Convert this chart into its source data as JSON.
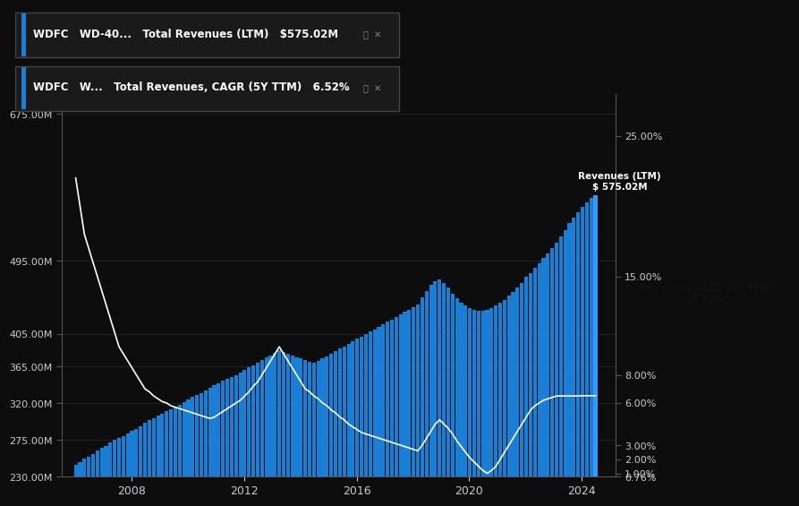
{
  "background_color": "#0d0d0d",
  "bar_color": "#1a7fd4",
  "bar_color_last": "#3399ff",
  "line_color": "#ffffff",
  "axis_text_color": "#cccccc",
  "left_yticks_labels": [
    "230.00M",
    "275.00M",
    "320.00M",
    "365.00M",
    "405.00M",
    "495.00M",
    "675.00M"
  ],
  "left_yticks_values": [
    230,
    275,
    320,
    365,
    405,
    495,
    675
  ],
  "right_yticks_labels": [
    "0.76%",
    "1.00%",
    "2.00%",
    "3.00%",
    "6.00%",
    "8.00%",
    "15.00%",
    "25.00%"
  ],
  "right_yticks_values": [
    0.76,
    1.0,
    2.0,
    3.0,
    6.0,
    8.0,
    15.0,
    25.0
  ],
  "xlabel_ticks": [
    2008,
    2012,
    2016,
    2020,
    2024
  ],
  "legend1_text": [
    "WDFC",
    "WD-40...",
    "Total Revenues (LTM)",
    "$575.02M"
  ],
  "legend2_text": [
    "WDFC",
    "W...",
    "Total Revenues, CAGR (5Y TTM)",
    "6.52%"
  ],
  "annotation_bar": "Revenues (LTM)\n$ 575.02M",
  "annotation_cagr": "Revenues CAGR (5Y TTM)\n6.52%",
  "revenues_data": [
    245,
    248,
    252,
    255,
    258,
    262,
    265,
    268,
    272,
    275,
    278,
    280,
    283,
    286,
    289,
    292,
    296,
    299,
    302,
    305,
    307,
    310,
    313,
    316,
    318,
    322,
    325,
    328,
    330,
    333,
    336,
    339,
    342,
    345,
    348,
    350,
    352,
    355,
    358,
    361,
    364,
    367,
    370,
    373,
    376,
    379,
    382,
    385,
    383,
    381,
    379,
    377,
    375,
    373,
    371,
    370,
    372,
    375,
    378,
    381,
    384,
    387,
    390,
    393,
    396,
    399,
    402,
    405,
    408,
    411,
    414,
    417,
    420,
    423,
    426,
    429,
    432,
    435,
    438,
    441,
    450,
    458,
    465,
    470,
    472,
    468,
    462,
    455,
    449,
    444,
    440,
    437,
    435,
    434,
    434,
    435,
    437,
    440,
    443,
    447,
    452,
    457,
    462,
    468,
    475,
    480,
    486,
    492,
    498,
    504,
    510,
    517,
    525,
    533,
    541,
    548,
    555,
    561,
    567,
    572,
    575
  ],
  "cagr_data": [
    22,
    20,
    18,
    17,
    16,
    15,
    14,
    13,
    12,
    11,
    10,
    9.5,
    9,
    8.5,
    8,
    7.5,
    7,
    6.8,
    6.5,
    6.3,
    6.1,
    6.0,
    5.8,
    5.7,
    5.6,
    5.5,
    5.4,
    5.3,
    5.2,
    5.1,
    5.0,
    4.9,
    5.0,
    5.2,
    5.4,
    5.6,
    5.8,
    6.0,
    6.2,
    6.5,
    6.8,
    7.2,
    7.5,
    8.0,
    8.5,
    9.0,
    9.5,
    10.0,
    9.5,
    9.0,
    8.5,
    8.0,
    7.5,
    7.0,
    6.8,
    6.5,
    6.3,
    6.0,
    5.8,
    5.5,
    5.3,
    5.0,
    4.8,
    4.5,
    4.3,
    4.1,
    3.9,
    3.8,
    3.7,
    3.6,
    3.5,
    3.4,
    3.3,
    3.2,
    3.1,
    3.0,
    2.9,
    2.8,
    2.7,
    2.6,
    3.0,
    3.5,
    4.0,
    4.5,
    4.8,
    4.5,
    4.2,
    3.8,
    3.3,
    2.9,
    2.5,
    2.1,
    1.8,
    1.5,
    1.2,
    1.0,
    1.2,
    1.5,
    2.0,
    2.5,
    3.0,
    3.5,
    4.0,
    4.5,
    5.0,
    5.5,
    5.8,
    6.0,
    6.2,
    6.3,
    6.4,
    6.5,
    6.5,
    6.5,
    6.5,
    6.5,
    6.5,
    6.52,
    6.52,
    6.52,
    6.52
  ]
}
